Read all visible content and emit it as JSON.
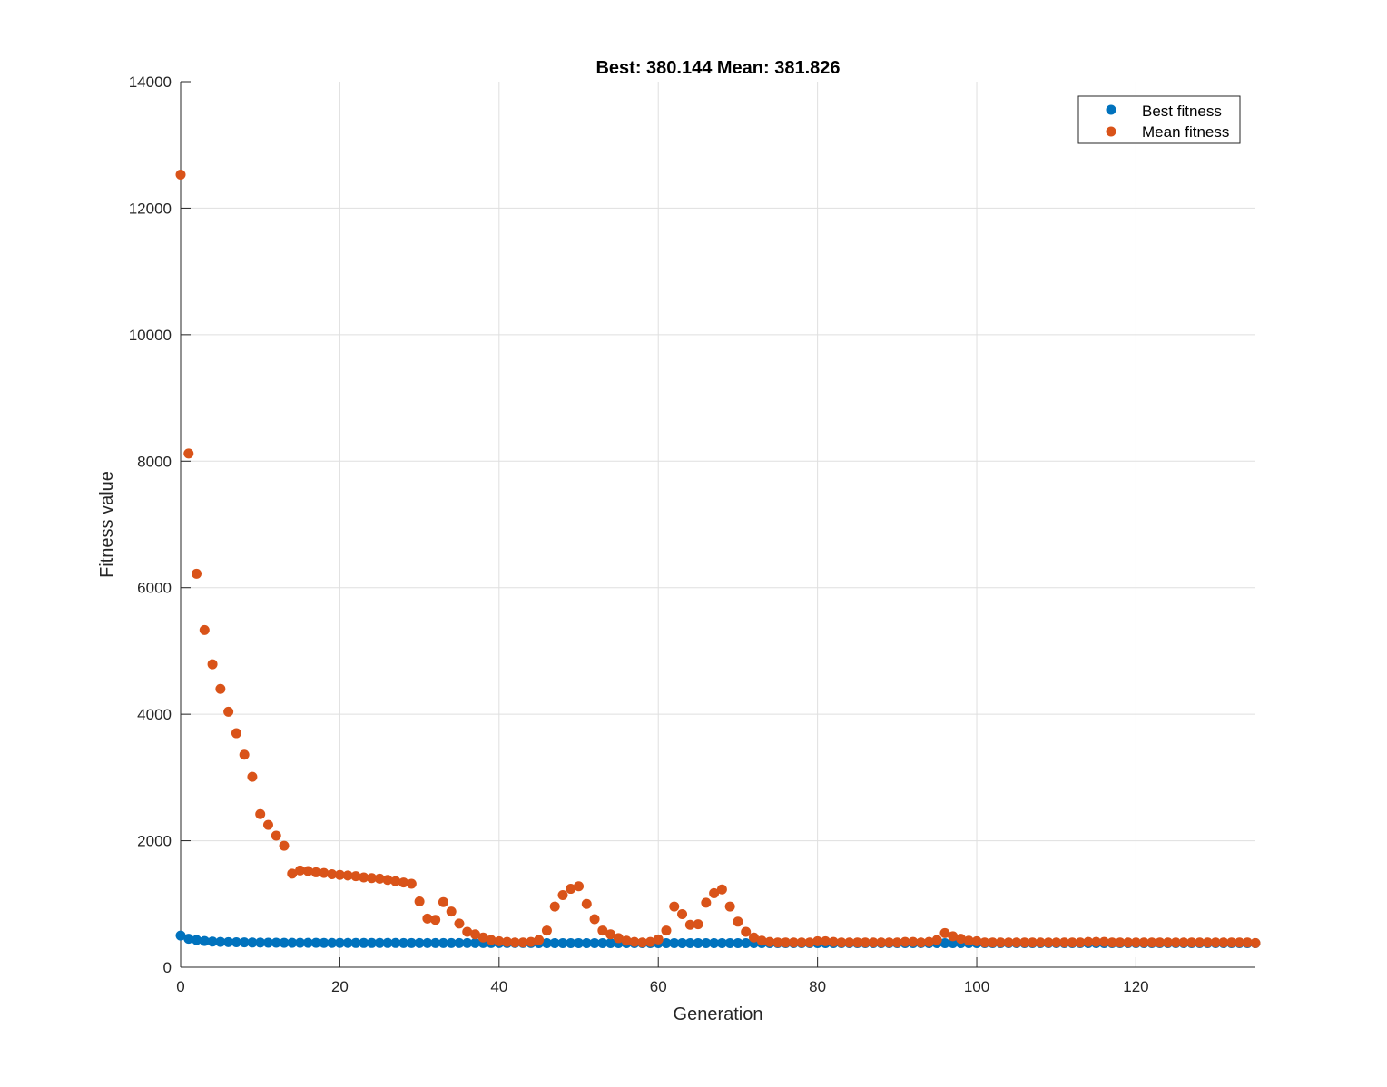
{
  "chart_data": {
    "type": "scatter",
    "title": "Best: 380.144 Mean: 381.826",
    "xlabel": "Generation",
    "ylabel": "Fitness value",
    "xlim": [
      0,
      135
    ],
    "ylim": [
      0,
      14000
    ],
    "xticks": [
      0,
      20,
      40,
      60,
      80,
      100,
      120
    ],
    "yticks": [
      0,
      2000,
      4000,
      6000,
      8000,
      10000,
      12000,
      14000
    ],
    "grid": true,
    "legend_position": "top-right",
    "series": [
      {
        "name": "Best fitness",
        "color": "#0072BD",
        "x": [
          0,
          1,
          2,
          3,
          4,
          5,
          6,
          7,
          8,
          9,
          10,
          11,
          12,
          13,
          14,
          15,
          16,
          17,
          18,
          19,
          20,
          21,
          22,
          23,
          24,
          25,
          26,
          27,
          28,
          29,
          30,
          31,
          32,
          33,
          34,
          35,
          36,
          37,
          38,
          39,
          40,
          41,
          42,
          43,
          44,
          45,
          46,
          47,
          48,
          49,
          50,
          51,
          52,
          53,
          54,
          55,
          56,
          57,
          58,
          59,
          60,
          61,
          62,
          63,
          64,
          65,
          66,
          67,
          68,
          69,
          70,
          71,
          72,
          73,
          74,
          75,
          76,
          77,
          78,
          79,
          80,
          81,
          82,
          83,
          84,
          85,
          86,
          87,
          88,
          89,
          90,
          91,
          92,
          93,
          94,
          95,
          96,
          97,
          98,
          99,
          100,
          101,
          102,
          103,
          104,
          105,
          106,
          107,
          108,
          109,
          110,
          111,
          112,
          113,
          114,
          115,
          116,
          117,
          118,
          119,
          120,
          121,
          122,
          123,
          124,
          125,
          126,
          127,
          128,
          129,
          130,
          131,
          132,
          133,
          134,
          135
        ],
        "y": [
          500,
          450,
          430,
          415,
          405,
          400,
          397,
          394,
          392,
          390,
          389,
          388,
          387,
          386,
          386,
          385,
          385,
          385,
          384,
          384,
          384,
          384,
          383,
          383,
          383,
          383,
          383,
          383,
          382,
          382,
          382,
          382,
          382,
          382,
          382,
          382,
          382,
          382,
          382,
          382,
          382,
          382,
          382,
          382,
          382,
          381,
          381,
          381,
          381,
          381,
          381,
          381,
          381,
          381,
          381,
          381,
          381,
          381,
          381,
          381,
          381,
          381,
          381,
          381,
          381,
          381,
          381,
          381,
          381,
          381,
          381,
          381,
          381,
          381,
          381,
          381,
          381,
          381,
          381,
          381,
          381,
          381,
          381,
          381,
          381,
          381,
          381,
          381,
          381,
          381,
          381,
          381,
          381,
          381,
          381,
          381,
          381,
          381,
          381,
          381,
          380.5,
          380.5,
          380.5,
          380.5,
          380.5,
          380.5,
          380.5,
          380.5,
          380.5,
          380.5,
          380.5,
          380.5,
          380.5,
          380.5,
          380.5,
          380.5,
          380.5,
          380.5,
          380.5,
          380.5,
          380.3,
          380.3,
          380.3,
          380.3,
          380.3,
          380.3,
          380.3,
          380.3,
          380.2,
          380.2,
          380.2,
          380.2,
          380.2,
          380.144,
          380.144,
          380.144
        ]
      },
      {
        "name": "Mean fitness",
        "color": "#D95319",
        "x": [
          0,
          1,
          2,
          3,
          4,
          5,
          6,
          7,
          8,
          9,
          10,
          11,
          12,
          13,
          14,
          15,
          16,
          17,
          18,
          19,
          20,
          21,
          22,
          23,
          24,
          25,
          26,
          27,
          28,
          29,
          30,
          31,
          32,
          33,
          34,
          35,
          36,
          37,
          38,
          39,
          40,
          41,
          42,
          43,
          44,
          45,
          46,
          47,
          48,
          49,
          50,
          51,
          52,
          53,
          54,
          55,
          56,
          57,
          58,
          59,
          60,
          61,
          62,
          63,
          64,
          65,
          66,
          67,
          68,
          69,
          70,
          71,
          72,
          73,
          74,
          75,
          76,
          77,
          78,
          79,
          80,
          81,
          82,
          83,
          84,
          85,
          86,
          87,
          88,
          89,
          90,
          91,
          92,
          93,
          94,
          95,
          96,
          97,
          98,
          99,
          100,
          101,
          102,
          103,
          104,
          105,
          106,
          107,
          108,
          109,
          110,
          111,
          112,
          113,
          114,
          115,
          116,
          117,
          118,
          119,
          120,
          121,
          122,
          123,
          124,
          125,
          126,
          127,
          128,
          129,
          130,
          131,
          132,
          133,
          134,
          135
        ],
        "y": [
          12530,
          8120,
          6220,
          5330,
          4790,
          4400,
          4040,
          3700,
          3360,
          3010,
          2420,
          2250,
          2080,
          1920,
          1480,
          1530,
          1520,
          1500,
          1490,
          1470,
          1460,
          1450,
          1440,
          1420,
          1410,
          1400,
          1380,
          1360,
          1340,
          1320,
          1040,
          770,
          750,
          1030,
          880,
          690,
          560,
          520,
          470,
          430,
          410,
          400,
          390,
          390,
          400,
          430,
          580,
          960,
          1140,
          1240,
          1280,
          1000,
          760,
          580,
          520,
          460,
          420,
          400,
          390,
          400,
          440,
          580,
          960,
          840,
          670,
          680,
          1020,
          1170,
          1230,
          960,
          720,
          560,
          470,
          420,
          400,
          390,
          390,
          390,
          390,
          390,
          410,
          410,
          400,
          390,
          390,
          390,
          390,
          390,
          390,
          390,
          390,
          400,
          400,
          390,
          400,
          430,
          540,
          490,
          450,
          420,
          410,
          390,
          390,
          390,
          390,
          390,
          390,
          390,
          390,
          390,
          390,
          390,
          390,
          390,
          400,
          400,
          400,
          390,
          390,
          390,
          390,
          390,
          390,
          390,
          390,
          390,
          390,
          390,
          390,
          390,
          390,
          390,
          390,
          390,
          390,
          381.826
        ]
      }
    ]
  }
}
